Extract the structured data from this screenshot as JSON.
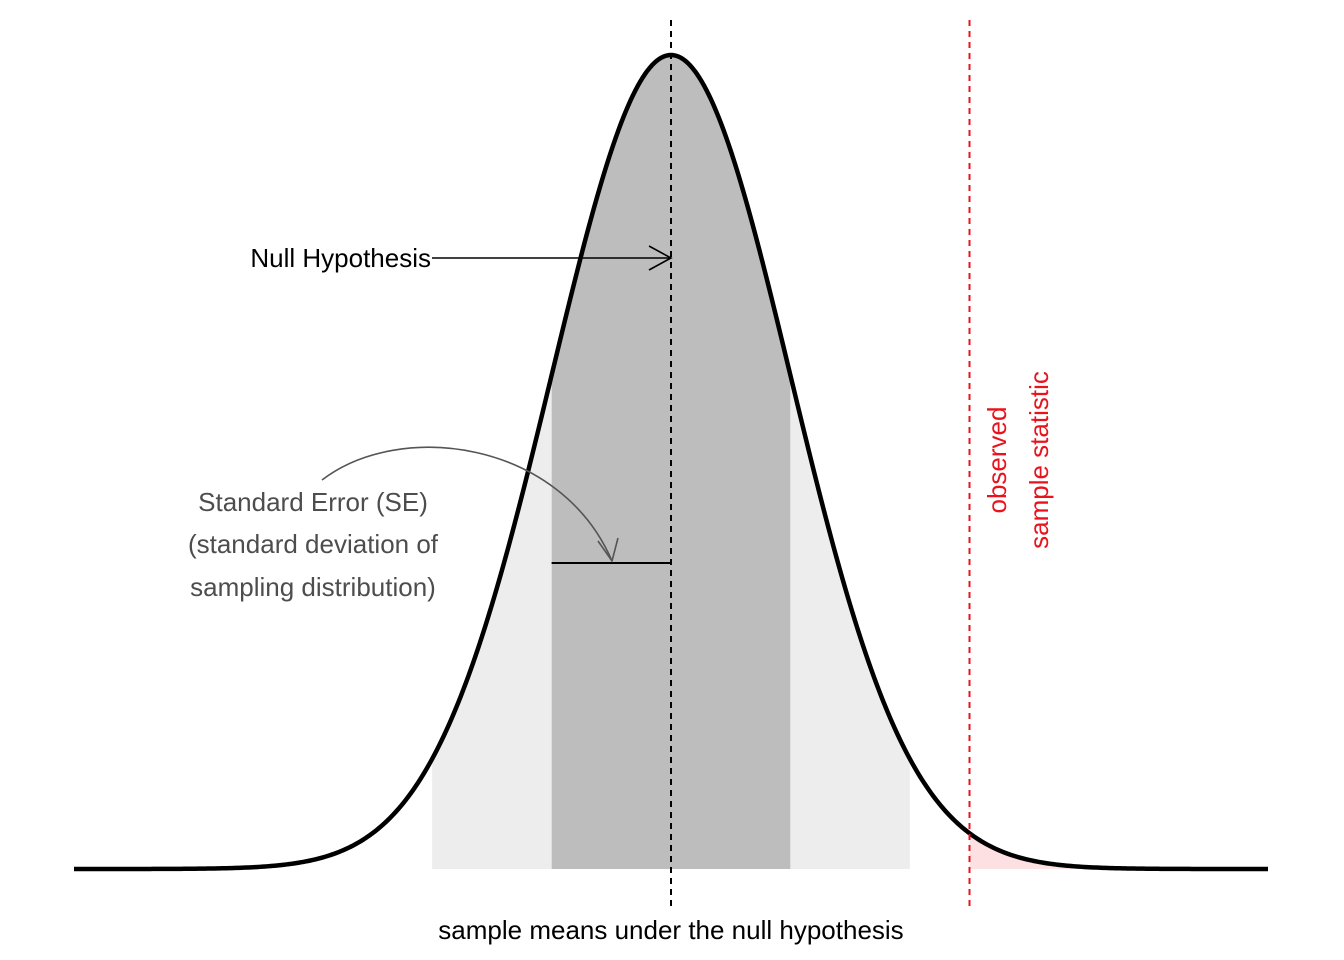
{
  "chart_data": {
    "type": "area",
    "title": "",
    "xlabel": "sample means under the null hypothesis",
    "ylabel": "",
    "xlim": [
      -5,
      5
    ],
    "grid": false,
    "distribution": {
      "name": "normal",
      "mean": 0,
      "sd": 1
    },
    "center": 0,
    "se": 1,
    "observed": 2.5,
    "shaded_bands": [
      {
        "from": -1,
        "to": 1,
        "color": "#bdbdbd"
      },
      {
        "from": -2,
        "to": -1,
        "color": "#ededed"
      },
      {
        "from": 1,
        "to": 2,
        "color": "#ededed"
      },
      {
        "from": 2.5,
        "to": 5,
        "color": "#fde0e2"
      }
    ],
    "annotations": {
      "null_hypothesis": "Null Hypothesis",
      "se_line1": "Standard Error (SE)",
      "se_line2": "(standard deviation of",
      "se_line3": "sampling distribution)",
      "observed_line1": "observed",
      "observed_line2": "sample statistic"
    },
    "colors": {
      "curve": "#000000",
      "inner_band": "#bdbdbd",
      "outer_band": "#ededed",
      "tail": "#fde0e2",
      "observed": "#e8131d",
      "se_text": "#4d4d4d",
      "se_arrow": "#555555"
    }
  }
}
